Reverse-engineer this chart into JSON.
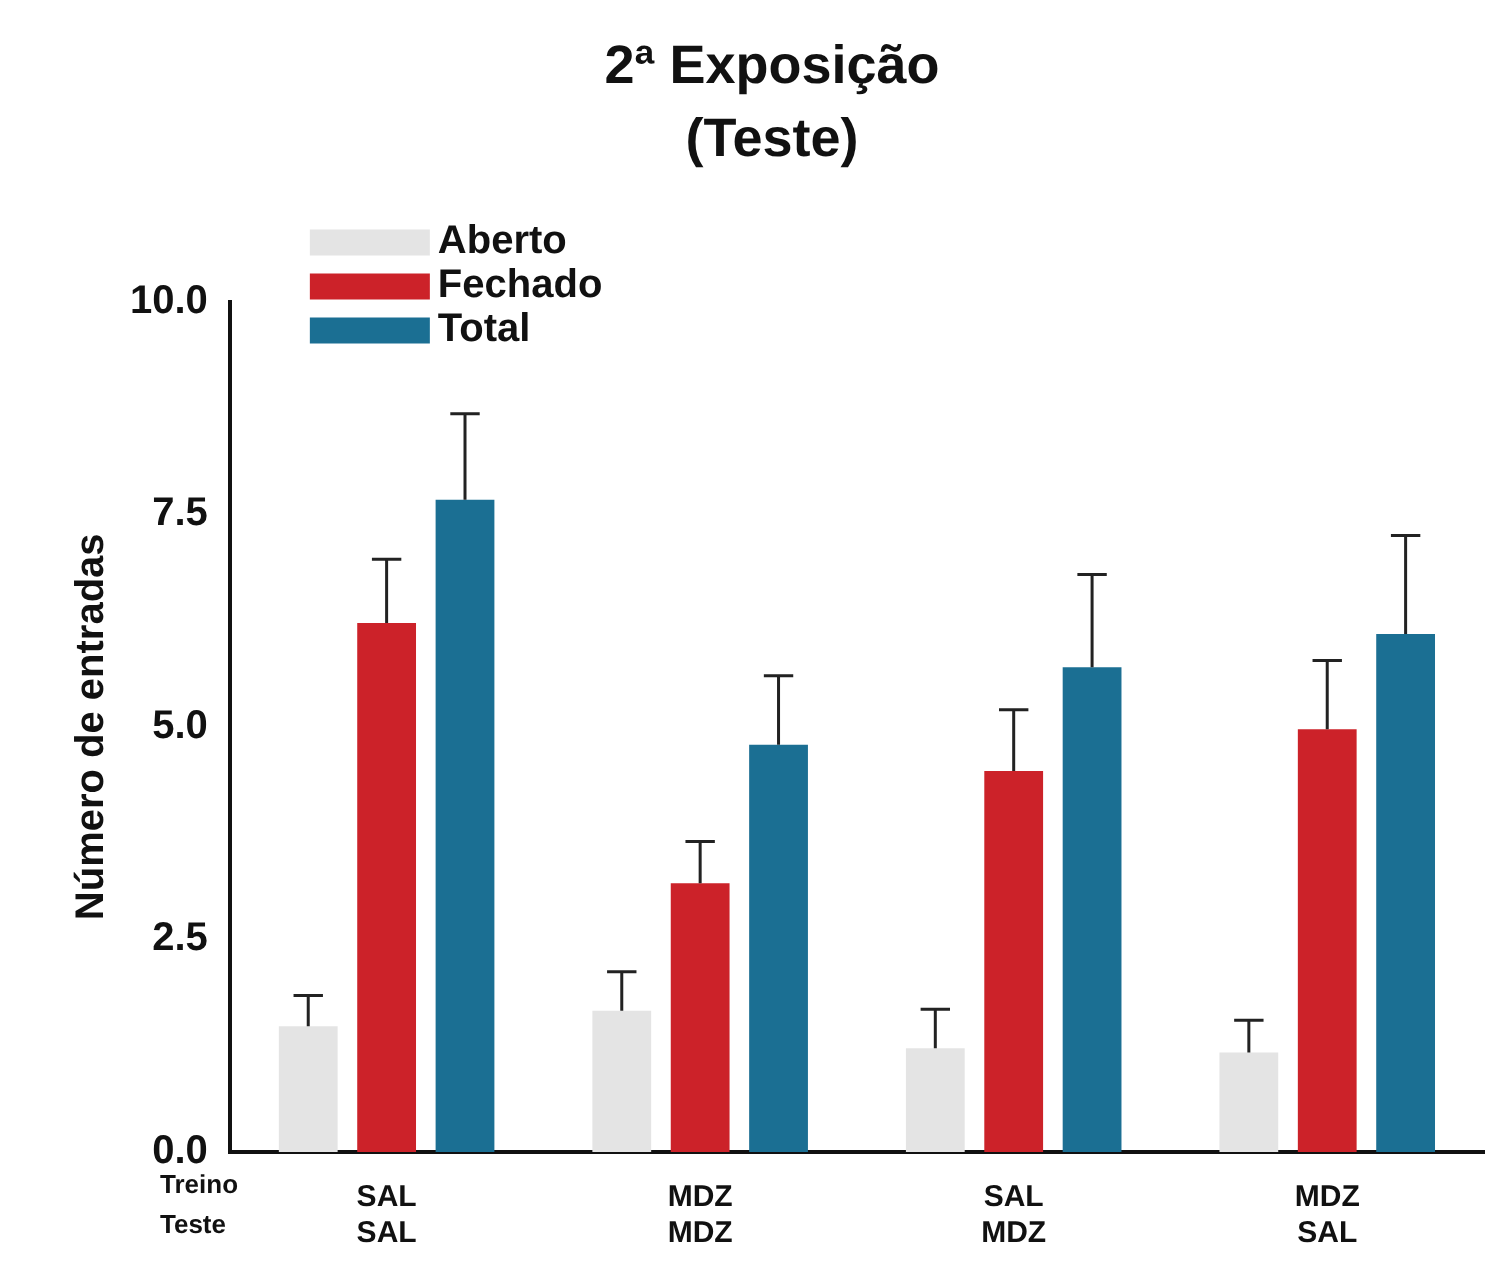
{
  "chart_data": {
    "type": "bar",
    "title": "2ª Exposição",
    "subtitle": "(Teste)",
    "ylabel": "Número de entradas",
    "categories": [
      "SAL\nSAL",
      "MDZ\nMDZ",
      "SAL\nMDZ",
      "MDZ\nSAL"
    ],
    "annotations": [
      "Treino",
      "Teste"
    ],
    "series": [
      {
        "name": "Aberto",
        "color": "#e4e4e4",
        "values": [
          1.48,
          1.66,
          1.22,
          1.17
        ],
        "errors": [
          [
            1.48,
            1.84
          ],
          [
            1.66,
            2.12
          ],
          [
            1.22,
            1.68
          ],
          [
            1.17,
            1.55
          ]
        ]
      },
      {
        "name": "Fechado",
        "color": "#cc2229",
        "values": [
          6.22,
          3.16,
          4.48,
          4.97
        ],
        "errors": [
          [
            6.22,
            6.97
          ],
          [
            3.16,
            3.65
          ],
          [
            4.48,
            5.2
          ],
          [
            4.97,
            5.78
          ]
        ]
      },
      {
        "name": "Total",
        "color": "#1b6f93",
        "values": [
          7.67,
          4.79,
          5.7,
          6.09
        ],
        "errors": [
          [
            7.67,
            8.68
          ],
          [
            4.79,
            5.6
          ],
          [
            5.7,
            6.79
          ],
          [
            6.09,
            7.25
          ]
        ]
      }
    ],
    "ylim": [
      0,
      10
    ],
    "yticks": [
      {
        "value": 0,
        "label": "0.0"
      },
      {
        "value": 2.5,
        "label": "2.5"
      },
      {
        "value": 5,
        "label": "5.0"
      },
      {
        "value": 7.5,
        "label": "7.5"
      },
      {
        "value": 10,
        "label": "10.0"
      }
    ],
    "grid": false,
    "legend": "top left"
  }
}
